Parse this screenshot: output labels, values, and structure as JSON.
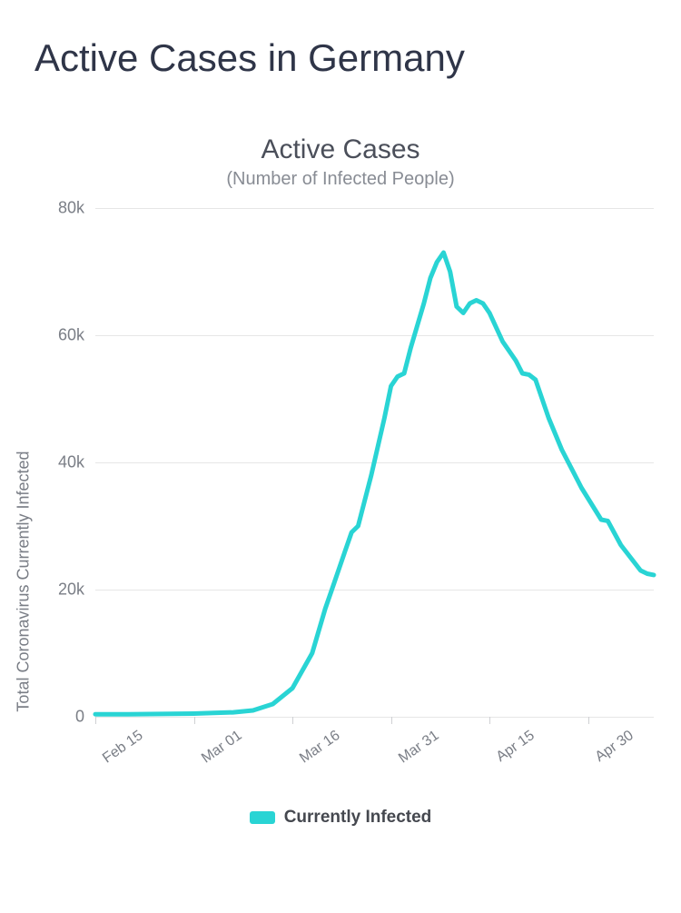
{
  "page": {
    "title": "Active Cases in Germany"
  },
  "chart": {
    "type": "line",
    "title": "Active Cases",
    "subtitle": "(Number of Infected People)",
    "ylabel": "Total Coronavirus Currently Infected",
    "ylim": [
      0,
      80000
    ],
    "ytick_step": 20000,
    "yticks": [
      {
        "value": 0,
        "label": "0"
      },
      {
        "value": 20000,
        "label": "20k"
      },
      {
        "value": 40000,
        "label": "40k"
      },
      {
        "value": 60000,
        "label": "60k"
      },
      {
        "value": 80000,
        "label": "80k"
      }
    ],
    "x_start": "Feb 15",
    "x_end": "May 10",
    "x_span_days": 85,
    "xticks": [
      {
        "label": "Feb 15",
        "day": 0
      },
      {
        "label": "Mar 01",
        "day": 15
      },
      {
        "label": "Mar 16",
        "day": 30
      },
      {
        "label": "Mar 31",
        "day": 45
      },
      {
        "label": "Apr 15",
        "day": 60
      },
      {
        "label": "Apr 30",
        "day": 75
      }
    ],
    "series": [
      {
        "name": "Currently Infected",
        "color": "#29d4d4",
        "line_width": 5,
        "data": [
          {
            "day": 0,
            "value": 400
          },
          {
            "day": 5,
            "value": 400
          },
          {
            "day": 10,
            "value": 450
          },
          {
            "day": 15,
            "value": 500
          },
          {
            "day": 18,
            "value": 600
          },
          {
            "day": 21,
            "value": 700
          },
          {
            "day": 24,
            "value": 1000
          },
          {
            "day": 27,
            "value": 2000
          },
          {
            "day": 30,
            "value": 4500
          },
          {
            "day": 33,
            "value": 10000
          },
          {
            "day": 35,
            "value": 17000
          },
          {
            "day": 36,
            "value": 20000
          },
          {
            "day": 38,
            "value": 26000
          },
          {
            "day": 39,
            "value": 29000
          },
          {
            "day": 40,
            "value": 30000
          },
          {
            "day": 42,
            "value": 38000
          },
          {
            "day": 44,
            "value": 47000
          },
          {
            "day": 45,
            "value": 52000
          },
          {
            "day": 46,
            "value": 53500
          },
          {
            "day": 47,
            "value": 54000
          },
          {
            "day": 48,
            "value": 58000
          },
          {
            "day": 50,
            "value": 65000
          },
          {
            "day": 51,
            "value": 69000
          },
          {
            "day": 52,
            "value": 71500
          },
          {
            "day": 53,
            "value": 73000
          },
          {
            "day": 54,
            "value": 70000
          },
          {
            "day": 55,
            "value": 64500
          },
          {
            "day": 56,
            "value": 63500
          },
          {
            "day": 57,
            "value": 65000
          },
          {
            "day": 58,
            "value": 65500
          },
          {
            "day": 59,
            "value": 65000
          },
          {
            "day": 60,
            "value": 63500
          },
          {
            "day": 62,
            "value": 59000
          },
          {
            "day": 64,
            "value": 56000
          },
          {
            "day": 65,
            "value": 54000
          },
          {
            "day": 66,
            "value": 53800
          },
          {
            "day": 67,
            "value": 53000
          },
          {
            "day": 69,
            "value": 47000
          },
          {
            "day": 71,
            "value": 42000
          },
          {
            "day": 74,
            "value": 36000
          },
          {
            "day": 77,
            "value": 31000
          },
          {
            "day": 78,
            "value": 30800
          },
          {
            "day": 80,
            "value": 27000
          },
          {
            "day": 83,
            "value": 23000
          },
          {
            "day": 84,
            "value": 22500
          },
          {
            "day": 85,
            "value": 22300
          }
        ]
      }
    ],
    "legend": {
      "items": [
        {
          "label": "Currently Infected",
          "color": "#29d4d4"
        }
      ]
    },
    "colors": {
      "background": "#ffffff",
      "grid": "#e6e6e6",
      "axis_text": "#7a7e86",
      "title_text": "#4b4f5a",
      "subtitle_text": "#888c94",
      "page_title": "#2f3548"
    },
    "fontsize": {
      "page_title": 42,
      "chart_title": 30,
      "subtitle": 20,
      "axis_label": 18,
      "tick_label": 18,
      "legend": 19
    }
  }
}
